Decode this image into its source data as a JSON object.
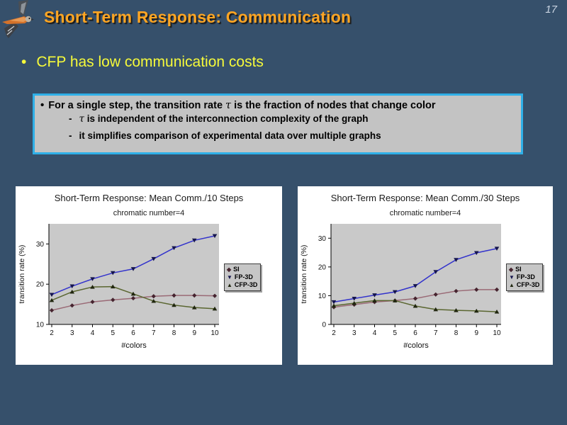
{
  "slide": {
    "page_number": "17",
    "title": "Short-Term Response: Communication",
    "bullet_char": "•",
    "headline": "CFP has low communication costs"
  },
  "infobox": {
    "bullet_char": "•",
    "dash_char": "-",
    "line1_prefix": "For a single step, the transition rate ",
    "line1_tau": "τ",
    "line1_suffix": " is the fraction of nodes that change color",
    "sub1_tau": "τ",
    "sub1_text": " is independent of the interconnection complexity of the graph",
    "sub2_text": "it simplifies comparison of experimental data over multiple graphs"
  },
  "chart_data": [
    {
      "type": "line",
      "title": "Short-Term Response: Mean Comm./10 Steps",
      "subtitle": "chromatic number=4",
      "xlabel": "#colors",
      "ylabel": "transition rate (%)",
      "x": [
        2,
        3,
        4,
        5,
        6,
        7,
        8,
        9,
        10
      ],
      "xlim": [
        2,
        10
      ],
      "ylim": [
        10,
        35
      ],
      "yticks": [
        10,
        20,
        30
      ],
      "grid": false,
      "legend_position": "right",
      "plot_bg": "#c9c9c9",
      "series": [
        {
          "name": "SI",
          "marker": "diamond",
          "color": "#9a6a76",
          "marker_color": "#46242f",
          "values": [
            13.5,
            14.7,
            15.6,
            16.1,
            16.5,
            17.0,
            17.2,
            17.2,
            17.1
          ]
        },
        {
          "name": "FP-3D",
          "marker": "triangle-down",
          "color": "#3333cc",
          "marker_color": "#15154d",
          "values": [
            17.4,
            19.5,
            21.3,
            22.8,
            23.8,
            26.3,
            29.0,
            30.9,
            32.0
          ]
        },
        {
          "name": "CFP-3D",
          "marker": "triangle-up",
          "color": "#5a6630",
          "marker_color": "#20260f",
          "values": [
            16.0,
            18.1,
            19.3,
            19.4,
            17.6,
            15.8,
            14.8,
            14.2,
            13.9
          ]
        }
      ]
    },
    {
      "type": "line",
      "title": "Short-Term Response: Mean Comm./30 Steps",
      "subtitle": "chromatic number=4",
      "xlabel": "#colors",
      "ylabel": "transition rate (%)",
      "x": [
        2,
        3,
        4,
        5,
        6,
        7,
        8,
        9,
        10
      ],
      "xlim": [
        2,
        10
      ],
      "ylim": [
        0,
        35
      ],
      "yticks": [
        0,
        10,
        20,
        30
      ],
      "grid": false,
      "legend_position": "right",
      "plot_bg": "#c9c9c9",
      "series": [
        {
          "name": "SI",
          "marker": "diamond",
          "color": "#9a6a76",
          "marker_color": "#46242f",
          "values": [
            6.0,
            6.9,
            7.8,
            8.3,
            9.0,
            10.4,
            11.6,
            12.1,
            12.1
          ]
        },
        {
          "name": "FP-3D",
          "marker": "triangle-down",
          "color": "#3333cc",
          "marker_color": "#15154d",
          "values": [
            7.8,
            9.0,
            10.2,
            11.3,
            13.4,
            18.3,
            22.5,
            24.9,
            26.4
          ]
        },
        {
          "name": "CFP-3D",
          "marker": "triangle-up",
          "color": "#5a6630",
          "marker_color": "#20260f",
          "values": [
            6.5,
            7.4,
            8.3,
            8.3,
            6.4,
            5.2,
            4.9,
            4.7,
            4.4
          ]
        }
      ]
    }
  ]
}
